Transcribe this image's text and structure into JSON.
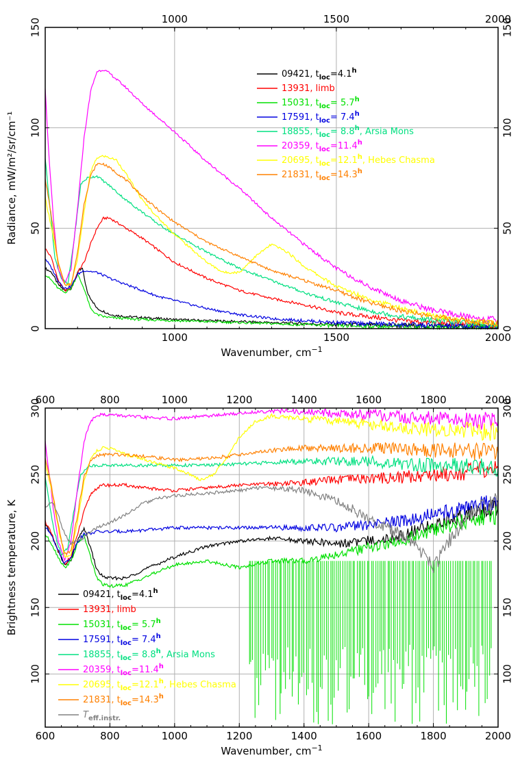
{
  "chart_data": [
    {
      "type": "line",
      "xlabel": "Wavenumber, cm",
      "xlabel_sup": "−1",
      "ylabel": "Radiance, mW/m²/sr/cm⁻¹",
      "xlim": [
        600,
        2000
      ],
      "ylim": [
        0,
        150
      ],
      "xticks_bottom": [
        1000,
        1500,
        2000
      ],
      "xticks_top": [
        1000,
        1500,
        2000
      ],
      "yticks": [
        0,
        50,
        100,
        150
      ],
      "grid": true,
      "legend_position": "top-center",
      "series": [
        {
          "name": "09421, t",
          "sub": "loc",
          "val": "=4.1",
          "sup": "h",
          "extra": "",
          "color": "#000000",
          "x": [
            600,
            620,
            640,
            660,
            680,
            700,
            715,
            730,
            760,
            790,
            800,
            850,
            900,
            950,
            1000,
            1100,
            1200,
            1300,
            1400,
            1500,
            1600,
            1700,
            1800,
            1900,
            2000
          ],
          "y": [
            30,
            28,
            22,
            19,
            20,
            28,
            30,
            18,
            10,
            8,
            7,
            6,
            5.5,
            5,
            4.5,
            4,
            3.5,
            3,
            2.5,
            2,
            1.8,
            1.5,
            1.2,
            1,
            1
          ]
        },
        {
          "name": "13931, limb",
          "sub": "",
          "val": "",
          "sup": "",
          "extra": "",
          "color": "#ff0000",
          "x": [
            600,
            620,
            640,
            660,
            680,
            700,
            720,
            740,
            760,
            780,
            800,
            850,
            900,
            950,
            1000,
            1100,
            1200,
            1300,
            1400,
            1500,
            1600,
            1700,
            1800,
            1900,
            2000
          ],
          "y": [
            40,
            35,
            24,
            19,
            20,
            28,
            33,
            42,
            50,
            55,
            55,
            50,
            45,
            39,
            33,
            25,
            19,
            15,
            12,
            8,
            6,
            4,
            3,
            2,
            1.5
          ]
        },
        {
          "name": "15031, t",
          "sub": "loc",
          "val": "= 5.7",
          "sup": "h",
          "extra": "",
          "color": "#00e000",
          "x": [
            600,
            620,
            640,
            660,
            680,
            700,
            720,
            740,
            760,
            780,
            800,
            850,
            900,
            1000,
            1100,
            1200,
            1300,
            1400,
            1500,
            1600,
            1700,
            1800,
            1900,
            2000
          ],
          "y": [
            27,
            24,
            20,
            18,
            20,
            27,
            20,
            10,
            7,
            6,
            5.5,
            5,
            4.5,
            4,
            3.5,
            3,
            2.5,
            2,
            1.5,
            1.2,
            1,
            0.8,
            0.6,
            0.5
          ]
        },
        {
          "name": "17591, t",
          "sub": "loc",
          "val": "= 7.4",
          "sup": "h",
          "extra": "",
          "color": "#0000e0",
          "x": [
            600,
            620,
            640,
            660,
            680,
            700,
            720,
            760,
            800,
            850,
            900,
            950,
            1000,
            1100,
            1200,
            1300,
            1400,
            1500,
            1600,
            1700,
            1800,
            1900,
            2000
          ],
          "y": [
            35,
            30,
            24,
            20,
            21,
            27,
            29,
            28,
            25,
            22,
            19,
            16,
            14,
            10,
            7,
            5,
            4,
            3,
            2.5,
            2,
            1.5,
            1,
            1
          ]
        },
        {
          "name": "18855, t",
          "sub": "loc",
          "val": "= 8.8",
          "sup": "h",
          "extra": ", Arsia Mons",
          "color": "#00e080",
          "x": [
            600,
            615,
            630,
            650,
            670,
            690,
            710,
            730,
            760,
            800,
            850,
            900,
            950,
            1000,
            1100,
            1200,
            1300,
            1400,
            1500,
            1600,
            1700,
            1800,
            1900,
            2000
          ],
          "y": [
            85,
            60,
            35,
            25,
            22,
            45,
            72,
            75,
            76,
            71,
            64,
            58,
            52,
            47,
            38,
            30,
            24,
            18,
            13,
            9,
            6,
            4,
            3,
            2
          ]
        },
        {
          "name": "20359, t",
          "sub": "loc",
          "val": "=11.4",
          "sup": "h",
          "extra": "",
          "color": "#ff00ff",
          "x": [
            600,
            610,
            625,
            640,
            660,
            680,
            700,
            720,
            740,
            760,
            780,
            800,
            850,
            900,
            1000,
            1100,
            1200,
            1300,
            1400,
            1500,
            1600,
            1700,
            1800,
            1900,
            2000
          ],
          "y": [
            120,
            90,
            55,
            30,
            22,
            30,
            60,
            95,
            118,
            128,
            129,
            127,
            120,
            112,
            98,
            83,
            70,
            55,
            42,
            30,
            21,
            14,
            9,
            6,
            4
          ]
        },
        {
          "name": "20695, t",
          "sub": "loc",
          "val": "=12.1",
          "sup": "h",
          "extra": ", Hebes Chasma",
          "color": "#ffff00",
          "x": [
            600,
            620,
            640,
            660,
            680,
            700,
            720,
            740,
            760,
            780,
            800,
            820,
            850,
            900,
            950,
            1000,
            1050,
            1100,
            1150,
            1200,
            1250,
            1300,
            1350,
            1400,
            1450,
            1500,
            1600,
            1700,
            1800,
            1900,
            2000
          ],
          "y": [
            65,
            50,
            32,
            22,
            22,
            35,
            58,
            78,
            85,
            86,
            85,
            84,
            77,
            64,
            55,
            47,
            40,
            33,
            28,
            28,
            36,
            42,
            38,
            31,
            26,
            21,
            15,
            10,
            6,
            4,
            2.5
          ]
        },
        {
          "name": "21831, t",
          "sub": "loc",
          "val": "=14.3",
          "sup": "h",
          "extra": "",
          "color": "#ff8000",
          "x": [
            600,
            620,
            640,
            660,
            680,
            700,
            720,
            740,
            760,
            780,
            800,
            850,
            900,
            950,
            1000,
            1100,
            1200,
            1300,
            1400,
            1500,
            1600,
            1700,
            1800,
            1900,
            2000
          ],
          "y": [
            75,
            55,
            33,
            22,
            22,
            38,
            62,
            76,
            82,
            82,
            80,
            74,
            66,
            59,
            53,
            43,
            36,
            29,
            24,
            19,
            13,
            9,
            6,
            4,
            2.5
          ]
        }
      ]
    },
    {
      "type": "line",
      "xlabel": "Wavenumber, cm",
      "xlabel_sup": "−1",
      "ylabel": "Brightness temperature, K",
      "xlim": [
        600,
        2000
      ],
      "ylim": [
        60,
        300
      ],
      "xticks_bottom": [
        600,
        800,
        1000,
        1200,
        1400,
        1600,
        1800,
        2000
      ],
      "xticks_top": [
        600,
        800,
        1000,
        1200,
        1400,
        1600,
        1800,
        2000
      ],
      "yticks": [
        100,
        150,
        200,
        250,
        300
      ],
      "grid": true,
      "legend_position": "bottom-left",
      "series": [
        {
          "name": "09421, t",
          "sub": "loc",
          "val": "=4.1",
          "sup": "h",
          "extra": "",
          "color": "#000000",
          "x": [
            600,
            620,
            640,
            660,
            680,
            700,
            720,
            740,
            760,
            780,
            800,
            850,
            900,
            1000,
            1100,
            1200,
            1300,
            1400,
            1500,
            1600,
            1700,
            1800,
            1900,
            2000
          ],
          "y": [
            212,
            205,
            192,
            182,
            186,
            200,
            210,
            195,
            178,
            173,
            172,
            172,
            178,
            188,
            196,
            200,
            202,
            200,
            198,
            200,
            204,
            212,
            220,
            225
          ]
        },
        {
          "name": "13931, limb",
          "sub": "",
          "val": "",
          "sup": "",
          "extra": "",
          "color": "#ff0000",
          "x": [
            600,
            620,
            640,
            660,
            680,
            700,
            720,
            740,
            760,
            780,
            800,
            850,
            900,
            1000,
            1100,
            1200,
            1300,
            1400,
            1500,
            1600,
            1700,
            1800,
            1900,
            2000
          ],
          "y": [
            215,
            205,
            192,
            183,
            188,
            205,
            222,
            235,
            240,
            242,
            242,
            242,
            240,
            238,
            240,
            242,
            243,
            244,
            246,
            247,
            248,
            250,
            252,
            255
          ]
        },
        {
          "name": "15031, t",
          "sub": "loc",
          "val": "= 5.7",
          "sup": "h",
          "extra": "",
          "color": "#00e000",
          "x": [
            600,
            620,
            640,
            660,
            680,
            700,
            720,
            740,
            760,
            780,
            800,
            850,
            900,
            1000,
            1100,
            1200,
            1300,
            1400,
            1500,
            1600,
            1700,
            1800,
            1900,
            2000
          ],
          "y": [
            205,
            198,
            188,
            180,
            185,
            198,
            204,
            188,
            172,
            167,
            166,
            167,
            172,
            182,
            185,
            180,
            185,
            185,
            190,
            195,
            200,
            208,
            215,
            220
          ]
        },
        {
          "name": "17591, t",
          "sub": "loc",
          "val": "= 7.4",
          "sup": "h",
          "extra": "",
          "color": "#0000e0",
          "x": [
            600,
            620,
            640,
            660,
            680,
            700,
            720,
            760,
            800,
            900,
            1000,
            1100,
            1200,
            1300,
            1400,
            1500,
            1600,
            1700,
            1800,
            1900,
            2000
          ],
          "y": [
            210,
            205,
            193,
            183,
            188,
            200,
            205,
            207,
            207,
            208,
            210,
            210,
            210,
            210,
            210,
            210,
            212,
            215,
            220,
            225,
            230
          ]
        },
        {
          "name": "18855, t",
          "sub": "loc",
          "val": "= 8.8",
          "sup": "h",
          "extra": ", Arsia Mons",
          "color": "#00e080",
          "x": [
            600,
            615,
            630,
            650,
            670,
            690,
            710,
            730,
            760,
            800,
            900,
            1000,
            1100,
            1200,
            1300,
            1400,
            1500,
            1600,
            1700,
            1800,
            1900,
            2000
          ],
          "y": [
            248,
            225,
            205,
            190,
            195,
            225,
            250,
            256,
            257,
            257,
            257,
            257,
            257,
            258,
            259,
            260,
            260,
            260,
            258,
            257,
            256,
            255
          ]
        },
        {
          "name": "20359, t",
          "sub": "loc",
          "val": "=11.4",
          "sup": "h",
          "extra": "",
          "color": "#ff00ff",
          "x": [
            600,
            610,
            625,
            640,
            660,
            680,
            700,
            720,
            740,
            760,
            780,
            800,
            900,
            1000,
            1100,
            1200,
            1300,
            1400,
            1500,
            1600,
            1700,
            1800,
            1900,
            2000
          ],
          "y": [
            275,
            255,
            225,
            200,
            185,
            200,
            240,
            275,
            290,
            295,
            295,
            295,
            293,
            292,
            294,
            296,
            298,
            297,
            296,
            295,
            293,
            292,
            291,
            290
          ]
        },
        {
          "name": "20695, t",
          "sub": "loc",
          "val": "=12.1",
          "sup": "h",
          "extra": ", Hebes Chasma",
          "color": "#ffff00",
          "x": [
            600,
            620,
            640,
            660,
            680,
            700,
            720,
            740,
            760,
            780,
            800,
            820,
            850,
            900,
            950,
            1000,
            1050,
            1080,
            1120,
            1160,
            1200,
            1250,
            1300,
            1350,
            1400,
            1500,
            1600,
            1700,
            1800,
            1900,
            2000
          ],
          "y": [
            258,
            238,
            210,
            188,
            190,
            215,
            245,
            262,
            268,
            270,
            270,
            268,
            265,
            262,
            258,
            255,
            250,
            246,
            250,
            262,
            278,
            290,
            294,
            293,
            292,
            290,
            288,
            285,
            284,
            283,
            282
          ]
        },
        {
          "name": "21831, t",
          "sub": "loc",
          "val": "=14.3",
          "sup": "h",
          "extra": "",
          "color": "#ff8000",
          "x": [
            600,
            620,
            640,
            660,
            680,
            700,
            720,
            740,
            760,
            780,
            800,
            850,
            900,
            1000,
            1100,
            1200,
            1300,
            1400,
            1500,
            1600,
            1700,
            1800,
            1900,
            2000
          ],
          "y": [
            262,
            240,
            212,
            190,
            193,
            220,
            248,
            260,
            264,
            265,
            265,
            265,
            264,
            261,
            262,
            265,
            268,
            270,
            270,
            270,
            270,
            268,
            268,
            266
          ]
        },
        {
          "name": "T",
          "sub": "eff.instr.",
          "val": "",
          "sup": "",
          "extra": "",
          "color": "#808080",
          "x": [
            600,
            620,
            640,
            660,
            680,
            700,
            720,
            740,
            760,
            780,
            800,
            850,
            900,
            950,
            1000,
            1100,
            1200,
            1250,
            1300,
            1400,
            1450,
            1500,
            1550,
            1600,
            1650,
            1700,
            1750,
            1800,
            1850,
            1900,
            1950,
            2000
          ],
          "y": [
            225,
            230,
            220,
            205,
            198,
            200,
            203,
            207,
            210,
            212,
            214,
            220,
            228,
            232,
            234,
            236,
            238,
            240,
            240,
            238,
            234,
            230,
            224,
            216,
            210,
            205,
            195,
            180,
            200,
            215,
            225,
            230
          ]
        }
      ]
    }
  ]
}
